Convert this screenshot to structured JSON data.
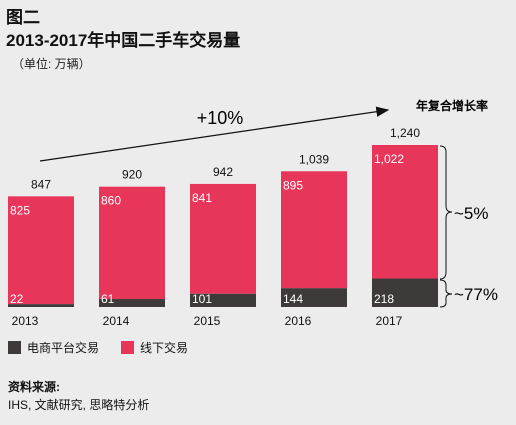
{
  "header": {
    "figure_label": "图二",
    "title": "2013-2017年中国二手车交易量",
    "unit": "（单位: 万辆）"
  },
  "colors": {
    "online": "#3d3a39",
    "offline": "#e8355a",
    "background": "#ececec"
  },
  "chart_data": {
    "type": "bar",
    "stacked": true,
    "categories": [
      "2013",
      "2014",
      "2015",
      "2016",
      "2017"
    ],
    "series": [
      {
        "name": "电商平台交易",
        "values": [
          22,
          61,
          101,
          144,
          218
        ]
      },
      {
        "name": "线下交易",
        "values": [
          825,
          860,
          841,
          895,
          1022
        ]
      }
    ],
    "totals": [
      "847",
      "920",
      "942",
      "1,039",
      "1,240"
    ],
    "online_labels": [
      "22",
      "61",
      "101",
      "144",
      "218"
    ],
    "offline_labels": [
      "825",
      "860",
      "841",
      "895",
      "1,022"
    ],
    "ylim": [
      0,
      1240
    ],
    "grid": false,
    "legend": "bottom-left",
    "annotations": {
      "overall_growth": "+10%",
      "cagr_label": "年复合增长率",
      "offline_cagr": "~5%",
      "online_cagr": "~77%"
    }
  },
  "legend": {
    "online": "电商平台交易",
    "offline": "线下交易"
  },
  "source": {
    "title": "资料来源:",
    "text": "IHS, 文献研究, 思略特分析"
  }
}
